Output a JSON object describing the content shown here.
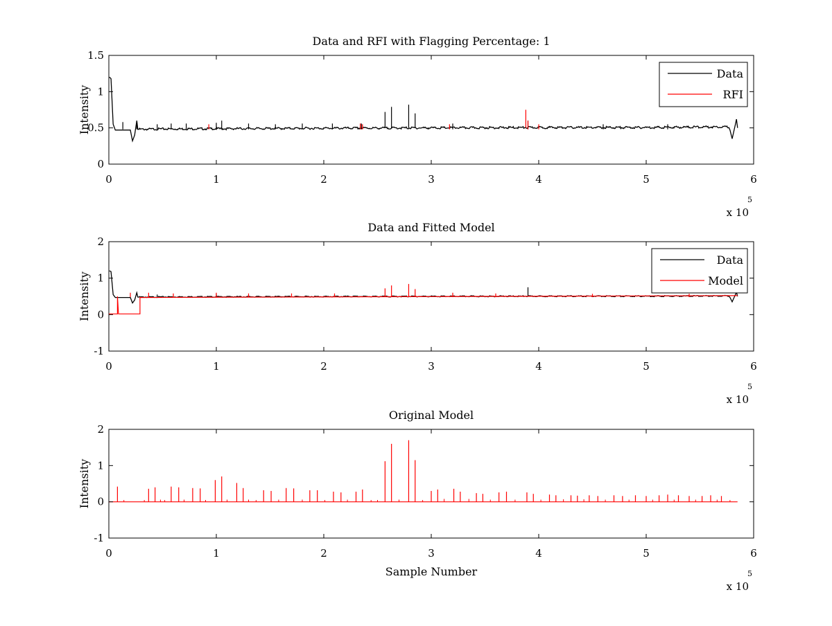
{
  "colors": {
    "data": "#000000",
    "rfi": "#ff0000",
    "model": "#ff0000",
    "background": "#ffffff"
  },
  "chart_data": [
    {
      "type": "line",
      "title": "Data and RFI with Flagging Percentage: 1",
      "xlabel": "",
      "ylabel": "Intensity",
      "xlim": [
        0,
        6
      ],
      "ylim": [
        0,
        1.5
      ],
      "xticks": [
        "0",
        "1",
        "2",
        "3",
        "4",
        "5",
        "6"
      ],
      "yticks": [
        "0",
        "0.5",
        "1",
        "1.5"
      ],
      "x_multiplier": {
        "base": "x 10",
        "exponent": "5"
      },
      "legend": {
        "placement": "top-right",
        "entries": [
          {
            "label": "Data",
            "color": "#000000"
          },
          {
            "label": "RFI",
            "color": "#ff0000"
          }
        ]
      },
      "series": [
        {
          "name": "Data",
          "color": "#000000",
          "baseline": [
            [
              0,
              0.45
            ],
            [
              0.05,
              0.48
            ],
            [
              0.5,
              0.49
            ],
            [
              2,
              0.5
            ],
            [
              4,
              0.51
            ],
            [
              5,
              0.51
            ],
            [
              5.75,
              0.52
            ],
            [
              5.85,
              0.52
            ]
          ],
          "features": [
            [
              0.005,
              1.2
            ],
            [
              0.02,
              1.18
            ],
            [
              0.04,
              0.55
            ],
            [
              0.06,
              0.47
            ],
            [
              0.2,
              0.47
            ],
            [
              0.22,
              0.32
            ],
            [
              0.24,
              0.4
            ],
            [
              0.26,
              0.6
            ],
            [
              0.27,
              0.48
            ],
            [
              5.78,
              0.47
            ],
            [
              5.8,
              0.35
            ],
            [
              5.83,
              0.55
            ],
            [
              5.84,
              0.62
            ],
            [
              5.85,
              0.5
            ]
          ],
          "spikes": [
            [
              0.13,
              0.58
            ],
            [
              0.26,
              0.58
            ],
            [
              0.45,
              0.55
            ],
            [
              0.58,
              0.56
            ],
            [
              0.72,
              0.56
            ],
            [
              1.0,
              0.57
            ],
            [
              1.05,
              0.6
            ],
            [
              1.3,
              0.56
            ],
            [
              1.55,
              0.55
            ],
            [
              1.8,
              0.56
            ],
            [
              2.08,
              0.56
            ],
            [
              2.35,
              0.56
            ],
            [
              2.57,
              0.72
            ],
            [
              2.63,
              0.79
            ],
            [
              2.79,
              0.82
            ],
            [
              2.85,
              0.7
            ],
            [
              3.2,
              0.56
            ],
            [
              3.9,
              0.6
            ],
            [
              4.6,
              0.55
            ],
            [
              5.2,
              0.55
            ]
          ]
        },
        {
          "name": "RFI",
          "color": "#ff0000",
          "spikes": [
            [
              0.93,
              0.55
            ],
            [
              2.34,
              0.56
            ],
            [
              2.36,
              0.55
            ],
            [
              3.17,
              0.55
            ],
            [
              3.88,
              0.75
            ],
            [
              3.9,
              0.6
            ],
            [
              4.0,
              0.55
            ]
          ]
        }
      ]
    },
    {
      "type": "line",
      "title": "Data and Fitted Model",
      "xlabel": "",
      "ylabel": "Intensity",
      "xlim": [
        0,
        6
      ],
      "ylim": [
        -1,
        2
      ],
      "xticks": [
        "0",
        "1",
        "2",
        "3",
        "4",
        "5",
        "6"
      ],
      "yticks": [
        "-1",
        "0",
        "1",
        "2"
      ],
      "x_multiplier": {
        "base": "x 10",
        "exponent": "5"
      },
      "legend": {
        "placement": "top-right",
        "entries": [
          {
            "label": "Data",
            "color": "#000000"
          },
          {
            "label": "Model",
            "color": "#ff0000"
          }
        ]
      },
      "series": [
        {
          "name": "Data",
          "color": "#000000",
          "baseline": [
            [
              0,
              0.45
            ],
            [
              0.05,
              0.48
            ],
            [
              0.5,
              0.49
            ],
            [
              2,
              0.5
            ],
            [
              4,
              0.51
            ],
            [
              5,
              0.51
            ],
            [
              5.75,
              0.52
            ],
            [
              5.85,
              0.52
            ]
          ],
          "features": [
            [
              0.005,
              1.2
            ],
            [
              0.02,
              1.18
            ],
            [
              0.04,
              0.55
            ],
            [
              0.06,
              0.47
            ],
            [
              0.2,
              0.47
            ],
            [
              0.22,
              0.32
            ],
            [
              0.24,
              0.4
            ],
            [
              0.26,
              0.6
            ],
            [
              0.27,
              0.48
            ],
            [
              5.78,
              0.47
            ],
            [
              5.8,
              0.35
            ],
            [
              5.83,
              0.55
            ],
            [
              5.84,
              0.62
            ],
            [
              5.85,
              0.5
            ]
          ],
          "spikes": [
            [
              0.45,
              0.55
            ],
            [
              1.0,
              0.57
            ],
            [
              3.9,
              0.75
            ]
          ]
        },
        {
          "name": "Model",
          "color": "#ff0000",
          "steps": [
            [
              0,
              0.02
            ],
            [
              0.08,
              0.02
            ],
            [
              0.08,
              0.5
            ],
            [
              0.09,
              0.02
            ],
            [
              0.29,
              0.02
            ],
            [
              0.29,
              0.47
            ],
            [
              5.85,
              0.52
            ]
          ],
          "spikes": [
            [
              0.2,
              0.6
            ],
            [
              0.37,
              0.6
            ],
            [
              0.6,
              0.58
            ],
            [
              1.0,
              0.6
            ],
            [
              1.3,
              0.58
            ],
            [
              1.7,
              0.58
            ],
            [
              2.1,
              0.58
            ],
            [
              2.57,
              0.72
            ],
            [
              2.63,
              0.8
            ],
            [
              2.79,
              0.84
            ],
            [
              2.85,
              0.7
            ],
            [
              3.2,
              0.6
            ],
            [
              3.6,
              0.58
            ],
            [
              4.5,
              0.57
            ],
            [
              5.4,
              0.57
            ]
          ]
        }
      ]
    },
    {
      "type": "line",
      "title": "Original Model",
      "xlabel": "Sample Number",
      "ylabel": "Intensity",
      "xlim": [
        0,
        6
      ],
      "ylim": [
        -1,
        2
      ],
      "xticks": [
        "0",
        "1",
        "2",
        "3",
        "4",
        "5",
        "6"
      ],
      "yticks": [
        "-1",
        "0",
        "1",
        "2"
      ],
      "x_multiplier": {
        "base": "x 10",
        "exponent": "5"
      },
      "series": [
        {
          "color": "#ff0000",
          "baseline_value": 0.0,
          "x_range": [
            0,
            5.85
          ],
          "spikes": [
            [
              0.08,
              0.42
            ],
            [
              0.37,
              0.36
            ],
            [
              0.43,
              0.4
            ],
            [
              0.58,
              0.42
            ],
            [
              0.65,
              0.4
            ],
            [
              0.78,
              0.38
            ],
            [
              0.85,
              0.37
            ],
            [
              0.99,
              0.6
            ],
            [
              1.05,
              0.7
            ],
            [
              1.19,
              0.52
            ],
            [
              1.25,
              0.38
            ],
            [
              1.44,
              0.32
            ],
            [
              1.51,
              0.3
            ],
            [
              1.65,
              0.38
            ],
            [
              1.72,
              0.37
            ],
            [
              1.87,
              0.32
            ],
            [
              1.94,
              0.32
            ],
            [
              2.09,
              0.28
            ],
            [
              2.16,
              0.26
            ],
            [
              2.3,
              0.28
            ],
            [
              2.36,
              0.34
            ],
            [
              2.57,
              1.12
            ],
            [
              2.63,
              1.6
            ],
            [
              2.79,
              1.7
            ],
            [
              2.85,
              1.15
            ],
            [
              3.0,
              0.3
            ],
            [
              3.06,
              0.34
            ],
            [
              3.21,
              0.36
            ],
            [
              3.27,
              0.28
            ],
            [
              3.42,
              0.24
            ],
            [
              3.48,
              0.22
            ],
            [
              3.63,
              0.26
            ],
            [
              3.7,
              0.28
            ],
            [
              3.89,
              0.26
            ],
            [
              3.95,
              0.22
            ],
            [
              4.1,
              0.2
            ],
            [
              4.16,
              0.18
            ],
            [
              4.3,
              0.18
            ],
            [
              4.36,
              0.17
            ],
            [
              4.47,
              0.18
            ],
            [
              4.55,
              0.16
            ],
            [
              4.7,
              0.18
            ],
            [
              4.78,
              0.16
            ],
            [
              4.9,
              0.18
            ],
            [
              5.0,
              0.16
            ],
            [
              5.12,
              0.18
            ],
            [
              5.2,
              0.2
            ],
            [
              5.3,
              0.18
            ],
            [
              5.4,
              0.16
            ],
            [
              5.52,
              0.16
            ],
            [
              5.6,
              0.18
            ],
            [
              5.7,
              0.16
            ]
          ],
          "minor_spikes": [
            [
              0.14,
              0.05
            ],
            [
              0.33,
              0.05
            ],
            [
              0.48,
              0.06
            ],
            [
              0.52,
              0.05
            ],
            [
              0.7,
              0.06
            ],
            [
              0.9,
              0.05
            ],
            [
              1.1,
              0.06
            ],
            [
              1.3,
              0.06
            ],
            [
              1.37,
              0.05
            ],
            [
              1.58,
              0.06
            ],
            [
              1.8,
              0.06
            ],
            [
              2.01,
              0.05
            ],
            [
              2.22,
              0.06
            ],
            [
              2.44,
              0.05
            ],
            [
              2.5,
              0.05
            ],
            [
              2.7,
              0.06
            ],
            [
              2.92,
              0.05
            ],
            [
              3.12,
              0.08
            ],
            [
              3.35,
              0.08
            ],
            [
              3.55,
              0.06
            ],
            [
              3.78,
              0.06
            ],
            [
              4.02,
              0.06
            ],
            [
              4.23,
              0.07
            ],
            [
              4.42,
              0.07
            ],
            [
              4.62,
              0.06
            ],
            [
              4.84,
              0.06
            ],
            [
              5.06,
              0.06
            ],
            [
              5.26,
              0.06
            ],
            [
              5.46,
              0.06
            ],
            [
              5.66,
              0.06
            ],
            [
              5.78,
              0.05
            ]
          ]
        }
      ]
    }
  ]
}
